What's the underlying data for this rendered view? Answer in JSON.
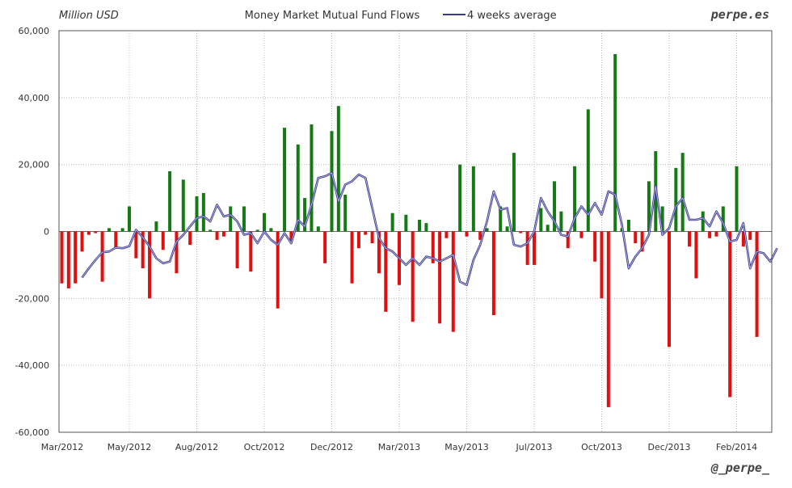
{
  "header": {
    "unit_label": "Million USD",
    "title": "Money Market Mutual Fund Flows",
    "legend_label": "4 weeks average",
    "brand": "perpe.es",
    "handle": "@_perpe_"
  },
  "colors": {
    "positive": "#157a15",
    "negative": "#e01010",
    "average_line": "#3b3b8f",
    "grid": "#bbbbbb"
  },
  "chart_data": {
    "type": "bar",
    "title": "Money Market Mutual Fund Flows",
    "ylabel": "Million USD",
    "xlabel": "",
    "ylim": [
      -60000,
      60000
    ],
    "y_ticks": [
      60000,
      40000,
      20000,
      0,
      -20000,
      -40000,
      -60000
    ],
    "y_tick_labels": [
      "60,000",
      "40,000",
      "20,000",
      "0",
      "-20,000",
      "-40,000",
      "-60,000"
    ],
    "x_tick_labels": [
      "Mar/2012",
      "May/2012",
      "Aug/2012",
      "Oct/2012",
      "Dec/2012",
      "Mar/2013",
      "May/2013",
      "Jul/2013",
      "Oct/2013",
      "Dec/2013",
      "Feb/2014"
    ],
    "x_tick_week_index": [
      0,
      10,
      20,
      30,
      40,
      50,
      60,
      70,
      80,
      90,
      100
    ],
    "grid": true,
    "legend_position": "top",
    "series": [
      {
        "name": "",
        "kind": "bar",
        "values": [
          -15500,
          -17000,
          -15500,
          -6000,
          -1000,
          -500,
          -15000,
          1000,
          -5000,
          1000,
          7500,
          -8000,
          -11000,
          -20000,
          3000,
          -5500,
          18000,
          -12500,
          15500,
          -4000,
          10500,
          11500,
          500,
          -2500,
          -1500,
          7500,
          -11000,
          7500,
          -12000,
          500,
          5500,
          1000,
          -23000,
          31000,
          -3000,
          26000,
          10000,
          32000,
          1500,
          -9500,
          30000,
          37500,
          11000,
          -15500,
          -5000,
          -1000,
          -3500,
          -12500,
          -24000,
          5500,
          -16000,
          5000,
          -27000,
          3500,
          2500,
          -9500,
          -27500,
          -2000,
          -30000,
          20000,
          -1500,
          19500,
          -2500,
          1000,
          -25000,
          7500,
          1500,
          23500,
          -500,
          -10000,
          -10000,
          7000,
          2000,
          15000,
          6000,
          -5000,
          19500,
          -2000,
          36500,
          -9000,
          -20000,
          -52500,
          53000,
          1000,
          3500,
          -3500,
          -6000,
          15000,
          24000,
          7500,
          -34500,
          19000,
          23500,
          -4500,
          -14000,
          6000,
          -2000,
          -1500,
          7500,
          -49500,
          19500,
          -4500,
          -2500,
          -31500
        ]
      },
      {
        "name": "4 weeks average",
        "kind": "line",
        "values": [
          -13800,
          -11000,
          -8500,
          -6200,
          -6000,
          -4800,
          -5000,
          -4400,
          500,
          -1800,
          -4500,
          -8000,
          -9500,
          -9000,
          -3000,
          -1000,
          1500,
          4000,
          4500,
          3000,
          8000,
          4500,
          5000,
          3000,
          -1000,
          -500,
          -3500,
          0,
          -2500,
          -4000,
          -500,
          -3500,
          3500,
          1500,
          8000,
          16000,
          16500,
          17500,
          9000,
          14000,
          15000,
          17000,
          16000,
          7000,
          -2000,
          -5000,
          -6000,
          -8000,
          -10000,
          -8000,
          -10000,
          -7500,
          -8000,
          -9000,
          -8000,
          -7000,
          -15000,
          -16000,
          -8500,
          -4000,
          3000,
          12000,
          6500,
          7000,
          -4000,
          -4500,
          -3500,
          0,
          10000,
          6000,
          3000,
          -1000,
          -1500,
          4000,
          7500,
          5000,
          8500,
          5000,
          12000,
          11000,
          2000,
          -11000,
          -7500,
          -5000,
          -1000,
          13500,
          -1000,
          1000,
          7500,
          10000,
          3500,
          3500,
          4000,
          1500,
          6000,
          2500,
          -3000,
          -2500,
          2500,
          -11000,
          -6000,
          -6500,
          -9000,
          -5000
        ]
      }
    ]
  }
}
